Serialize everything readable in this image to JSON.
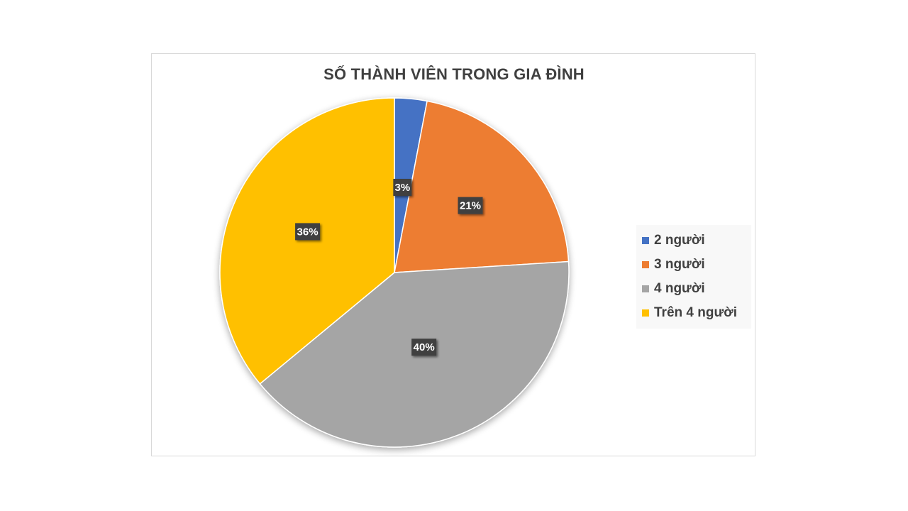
{
  "chart_data": {
    "type": "pie",
    "title": "SỐ THÀNH VIÊN TRONG GIA ĐÌNH",
    "categories": [
      "2 người",
      "3 người",
      "4 người",
      "Trên 4 người"
    ],
    "values": [
      3,
      21,
      40,
      36
    ],
    "labels": [
      "3%",
      "21%",
      "40%",
      "36%"
    ],
    "colors": [
      "#4472C4",
      "#ED7D31",
      "#A5A5A5",
      "#FFC000"
    ],
    "legend_position": "right"
  }
}
